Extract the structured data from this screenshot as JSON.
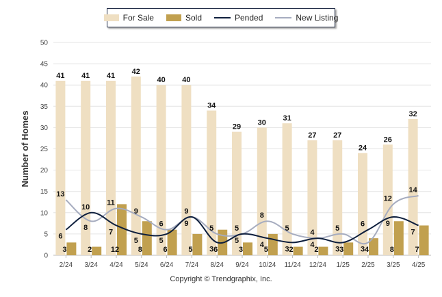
{
  "chart_data": {
    "type": "bar",
    "ylabel": "Number of Homes",
    "ylim": [
      0,
      50
    ],
    "yticks": [
      0,
      5,
      10,
      15,
      20,
      25,
      30,
      35,
      40,
      45,
      50
    ],
    "categories": [
      "2/24",
      "3/24",
      "4/24",
      "5/24",
      "6/24",
      "7/24",
      "8/24",
      "9/24",
      "10/24",
      "11/24",
      "12/24",
      "1/25",
      "2/25",
      "3/25",
      "4/25"
    ],
    "series": [
      {
        "name": "For Sale",
        "kind": "bar",
        "color": "#efdfc2",
        "values": [
          41,
          41,
          41,
          42,
          40,
          40,
          34,
          29,
          30,
          31,
          27,
          27,
          24,
          26,
          32
        ]
      },
      {
        "name": "Sold",
        "kind": "bar",
        "color": "#c1a04f",
        "values": [
          3,
          2,
          12,
          8,
          6,
          5,
          6,
          3,
          5,
          2,
          2,
          3,
          4,
          8,
          7
        ]
      },
      {
        "name": "Pended",
        "kind": "line",
        "color": "#0e1f3d",
        "values": [
          6,
          10,
          7,
          5,
          5,
          9,
          3,
          5,
          4,
          3,
          4,
          3,
          6,
          9,
          7
        ]
      },
      {
        "name": "New Listing",
        "kind": "line",
        "color": "#a6acbf",
        "values": [
          13,
          8,
          11,
          9,
          6,
          9,
          5,
          5,
          8,
          5,
          4,
          5,
          3,
          12,
          14
        ]
      }
    ],
    "grid": true,
    "legend": "top"
  },
  "footer": {
    "copyright": "Copyright © Trendgraphix, Inc."
  }
}
